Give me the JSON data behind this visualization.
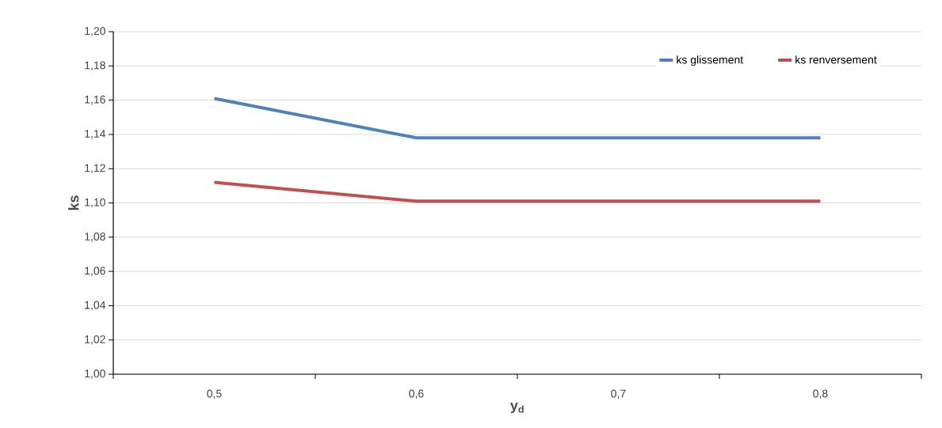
{
  "chart_data": {
    "type": "line",
    "xlabel": "y$_{d}$",
    "ylabel": "ks",
    "categories": [
      "0,5",
      "0,6",
      "0,7",
      "0,8"
    ],
    "series": [
      {
        "name": "ks glissement",
        "color": "#4f81bd",
        "values": [
          1.161,
          1.138,
          1.138,
          1.138
        ]
      },
      {
        "name": "ks renversement",
        "color": "#c0504d",
        "values": [
          1.112,
          1.101,
          1.101,
          1.101
        ]
      }
    ],
    "ylim": [
      1.0,
      1.2
    ],
    "yticks": [
      {
        "value": 1.0,
        "label": "1,00"
      },
      {
        "value": 1.02,
        "label": "1,02"
      },
      {
        "value": 1.04,
        "label": "1,04"
      },
      {
        "value": 1.06,
        "label": "1,06"
      },
      {
        "value": 1.08,
        "label": "1,08"
      },
      {
        "value": 1.1,
        "label": "1,10"
      },
      {
        "value": 1.12,
        "label": "1,12"
      },
      {
        "value": 1.14,
        "label": "1,14"
      },
      {
        "value": 1.16,
        "label": "1,16"
      },
      {
        "value": 1.18,
        "label": "1,18"
      },
      {
        "value": 1.2,
        "label": "1,20"
      }
    ],
    "grid": "y",
    "legend": "top right",
    "marker": "none",
    "line_style": "solid"
  }
}
